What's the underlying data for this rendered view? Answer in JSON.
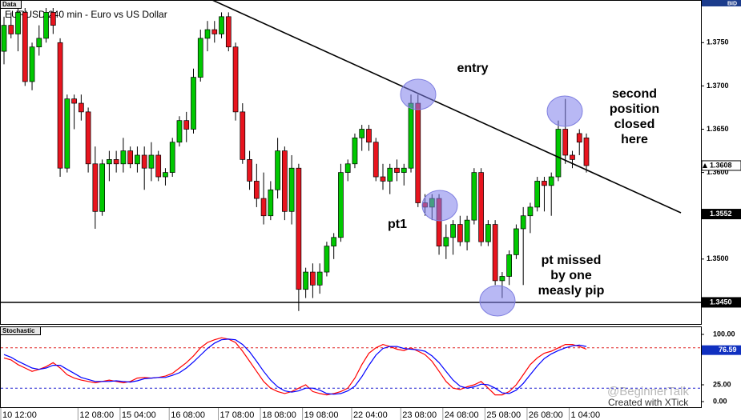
{
  "chart_data": {
    "type": "candlestick",
    "panel_label": "Data",
    "title": "EURUSD,240 min - Euro vs US Dollar",
    "price_side": "BID",
    "categories": [
      "10 12:00",
      null,
      null,
      null,
      null,
      null,
      null,
      null,
      null,
      null,
      null,
      "12 08:00",
      null,
      null,
      null,
      null,
      null,
      "15 04:00",
      null,
      null,
      null,
      null,
      null,
      null,
      "16 08:00",
      null,
      null,
      null,
      null,
      null,
      null,
      "17 08:00",
      null,
      null,
      null,
      null,
      null,
      "18 08:00",
      null,
      null,
      null,
      null,
      null,
      "19 08:00",
      null,
      null,
      null,
      null,
      null,
      null,
      "22 04:00",
      null,
      null,
      null,
      null,
      null,
      null,
      "23 08:00",
      null,
      null,
      null,
      null,
      null,
      "24 08:00",
      null,
      null,
      null,
      null,
      null,
      "25 08:00",
      null,
      null,
      null,
      null,
      null,
      "26 08:00",
      null,
      null,
      null,
      null,
      null,
      "1 04:00",
      null,
      null
    ],
    "ohlc": [
      [
        1.374,
        1.378,
        1.3725,
        1.377
      ],
      [
        1.377,
        1.3785,
        1.3755,
        1.376
      ],
      [
        1.376,
        1.379,
        1.374,
        1.3785
      ],
      [
        1.3785,
        1.379,
        1.37,
        1.3705
      ],
      [
        1.3705,
        1.375,
        1.3695,
        1.3745
      ],
      [
        1.3745,
        1.377,
        1.3735,
        1.3755
      ],
      [
        1.3755,
        1.379,
        1.375,
        1.3785
      ],
      [
        1.3785,
        1.379,
        1.376,
        1.377
      ],
      [
        1.375,
        1.3755,
        1.3595,
        1.3605
      ],
      [
        1.3605,
        1.369,
        1.36,
        1.3685
      ],
      [
        1.3685,
        1.369,
        1.365,
        1.368
      ],
      [
        1.368,
        1.369,
        1.366,
        1.367
      ],
      [
        1.367,
        1.3675,
        1.36,
        1.361
      ],
      [
        1.361,
        1.363,
        1.3535,
        1.3555
      ],
      [
        1.3555,
        1.3615,
        1.355,
        1.361
      ],
      [
        1.361,
        1.3625,
        1.359,
        1.3615
      ],
      [
        1.3615,
        1.3625,
        1.36,
        1.361
      ],
      [
        1.361,
        1.364,
        1.36,
        1.3625
      ],
      [
        1.3625,
        1.363,
        1.3605,
        1.361
      ],
      [
        1.361,
        1.363,
        1.36,
        1.362
      ],
      [
        1.362,
        1.363,
        1.358,
        1.3605
      ],
      [
        1.3605,
        1.3635,
        1.359,
        1.362
      ],
      [
        1.362,
        1.3625,
        1.359,
        1.3595
      ],
      [
        1.3595,
        1.3605,
        1.3585,
        1.36
      ],
      [
        1.36,
        1.364,
        1.3595,
        1.3635
      ],
      [
        1.3635,
        1.3665,
        1.363,
        1.366
      ],
      [
        1.366,
        1.367,
        1.3635,
        1.365
      ],
      [
        1.365,
        1.372,
        1.3645,
        1.371
      ],
      [
        1.371,
        1.3765,
        1.3705,
        1.3755
      ],
      [
        1.3755,
        1.3775,
        1.374,
        1.3765
      ],
      [
        1.3765,
        1.3775,
        1.375,
        1.376
      ],
      [
        1.376,
        1.3785,
        1.3755,
        1.378
      ],
      [
        1.378,
        1.3785,
        1.374,
        1.3745
      ],
      [
        1.3745,
        1.375,
        1.366,
        1.367
      ],
      [
        1.367,
        1.368,
        1.361,
        1.3615
      ],
      [
        1.3615,
        1.3625,
        1.358,
        1.359
      ],
      [
        1.359,
        1.361,
        1.356,
        1.357
      ],
      [
        1.357,
        1.36,
        1.354,
        1.355
      ],
      [
        1.355,
        1.359,
        1.3545,
        1.358
      ],
      [
        1.358,
        1.364,
        1.357,
        1.3625
      ],
      [
        1.3625,
        1.363,
        1.3545,
        1.3555
      ],
      [
        1.3555,
        1.362,
        1.354,
        1.3605
      ],
      [
        1.3605,
        1.361,
        1.344,
        1.3465
      ],
      [
        1.3465,
        1.349,
        1.3455,
        1.3485
      ],
      [
        1.3485,
        1.3495,
        1.3455,
        1.347
      ],
      [
        1.347,
        1.3495,
        1.346,
        1.3485
      ],
      [
        1.3485,
        1.352,
        1.348,
        1.3515
      ],
      [
        1.3515,
        1.353,
        1.35,
        1.3525
      ],
      [
        1.3525,
        1.361,
        1.352,
        1.36
      ],
      [
        1.36,
        1.3615,
        1.359,
        1.361
      ],
      [
        1.361,
        1.3645,
        1.3605,
        1.364
      ],
      [
        1.364,
        1.3655,
        1.3625,
        1.365
      ],
      [
        1.365,
        1.3655,
        1.3625,
        1.3635
      ],
      [
        1.3635,
        1.364,
        1.359,
        1.3595
      ],
      [
        1.3595,
        1.361,
        1.358,
        1.359
      ],
      [
        1.359,
        1.361,
        1.3575,
        1.3605
      ],
      [
        1.3605,
        1.3615,
        1.359,
        1.36
      ],
      [
        1.36,
        1.361,
        1.3585,
        1.3605
      ],
      [
        1.3605,
        1.369,
        1.36,
        1.368
      ],
      [
        1.368,
        1.369,
        1.356,
        1.3565
      ],
      [
        1.3565,
        1.3575,
        1.355,
        1.356
      ],
      [
        1.356,
        1.3575,
        1.3545,
        1.357
      ],
      [
        1.357,
        1.3575,
        1.3505,
        1.3515
      ],
      [
        1.3515,
        1.354,
        1.35,
        1.3525
      ],
      [
        1.3525,
        1.3545,
        1.3505,
        1.354
      ],
      [
        1.354,
        1.355,
        1.3515,
        1.352
      ],
      [
        1.352,
        1.355,
        1.351,
        1.3545
      ],
      [
        1.3545,
        1.3605,
        1.354,
        1.36
      ],
      [
        1.36,
        1.3605,
        1.3515,
        1.352
      ],
      [
        1.352,
        1.3545,
        1.3515,
        1.354
      ],
      [
        1.354,
        1.3545,
        1.347,
        1.3475
      ],
      [
        1.3475,
        1.3485,
        1.3455,
        1.348
      ],
      [
        1.348,
        1.351,
        1.347,
        1.3505
      ],
      [
        1.3505,
        1.354,
        1.35,
        1.3535
      ],
      [
        1.3535,
        1.356,
        1.347,
        1.355
      ],
      [
        1.355,
        1.3565,
        1.353,
        1.356
      ],
      [
        1.356,
        1.3595,
        1.3555,
        1.359
      ],
      [
        1.359,
        1.3595,
        1.3555,
        1.3585
      ],
      [
        1.3585,
        1.36,
        1.355,
        1.3595
      ],
      [
        1.3595,
        1.366,
        1.359,
        1.365
      ],
      [
        1.365,
        1.3685,
        1.361,
        1.362
      ],
      [
        1.362,
        1.3625,
        1.3605,
        1.3615
      ],
      [
        1.3645,
        1.365,
        1.362,
        1.3635
      ],
      [
        1.364,
        1.3645,
        1.36,
        1.3608
      ]
    ],
    "up_color": "#00c800",
    "down_color": "#e8141e",
    "ylim": [
      1.3425,
      1.379
    ],
    "yticks": [
      {
        "value": 1.375,
        "label": "1.3750"
      },
      {
        "value": 1.37,
        "label": "1.3700"
      },
      {
        "value": 1.365,
        "label": "1.3650"
      },
      {
        "value": 1.36,
        "label": "1.3600"
      },
      {
        "value": 1.35,
        "label": "1.3500"
      }
    ],
    "price_markers": [
      {
        "value": 1.3608,
        "label": "1.3608",
        "style": "current"
      },
      {
        "value": 1.3552,
        "label": "1.3552",
        "style": "dark"
      },
      {
        "value": 1.345,
        "label": "1.3450",
        "style": "dark"
      }
    ],
    "annotations": {
      "entry": "entry",
      "pt1": "pt1",
      "second": [
        "second",
        "position",
        "closed",
        "here"
      ],
      "missed": [
        "pt missed",
        "by one",
        "measly pip"
      ]
    },
    "stochastic": {
      "type": "line",
      "title": "Stochastic",
      "ylim": [
        0,
        100
      ],
      "yticks": [
        {
          "value": 100,
          "label": "100.00"
        },
        {
          "value": 25,
          "label": "25.00"
        },
        {
          "value": 0,
          "label": "0.00"
        }
      ],
      "levels": [
        {
          "value": 80,
          "color": "#e02020"
        },
        {
          "value": 20,
          "color": "#2020d0"
        }
      ],
      "current": {
        "value": 76.59,
        "label": "76.59"
      },
      "series": [
        {
          "color": "#ff0000",
          "values": [
            65,
            62,
            55,
            50,
            45,
            48,
            52,
            58,
            50,
            40,
            35,
            32,
            30,
            28,
            30,
            32,
            30,
            28,
            30,
            35,
            36,
            35,
            36,
            38,
            42,
            50,
            58,
            68,
            80,
            88,
            92,
            95,
            93,
            88,
            75,
            60,
            45,
            30,
            20,
            15,
            12,
            15,
            20,
            25,
            15,
            12,
            10,
            12,
            15,
            20,
            35,
            55,
            72,
            80,
            85,
            82,
            78,
            76,
            80,
            75,
            70,
            60,
            45,
            30,
            20,
            18,
            22,
            25,
            30,
            20,
            10,
            10,
            15,
            25,
            40,
            55,
            65,
            72,
            75,
            80,
            85,
            85,
            82,
            78
          ]
        },
        {
          "color": "#0000ff",
          "values": [
            70,
            66,
            60,
            55,
            50,
            48,
            50,
            54,
            54,
            48,
            42,
            36,
            33,
            30,
            30,
            30,
            31,
            30,
            29,
            31,
            34,
            35,
            36,
            36,
            39,
            43,
            50,
            59,
            69,
            79,
            87,
            92,
            93,
            92,
            85,
            74,
            60,
            45,
            32,
            22,
            16,
            14,
            16,
            20,
            20,
            17,
            12,
            11,
            12,
            16,
            23,
            37,
            54,
            69,
            79,
            82,
            82,
            79,
            78,
            77,
            75,
            68,
            58,
            45,
            32,
            23,
            20,
            22,
            26,
            25,
            20,
            13,
            12,
            17,
            27,
            40,
            53,
            64,
            71,
            76,
            80,
            83,
            84,
            82
          ]
        }
      ]
    },
    "watermark": "@BeginnerTalk",
    "credit": "Created with XTick"
  }
}
